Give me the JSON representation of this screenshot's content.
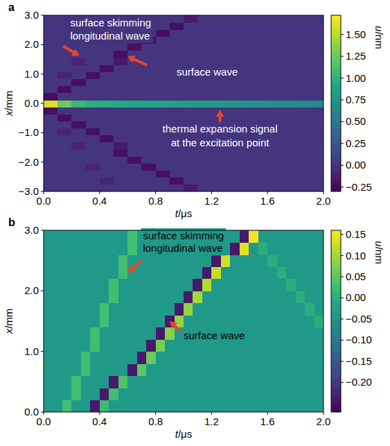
{
  "chart_data": [
    {
      "type": "heatmap",
      "panel": "a",
      "xlabel": "t/μs",
      "ylabel": "x/mm",
      "xlim": [
        0,
        2
      ],
      "ylim": [
        -3,
        3
      ],
      "xticks": [
        {
          "value": 0,
          "label": "0.0"
        },
        {
          "value": 0.4,
          "label": "0.4"
        },
        {
          "value": 0.8,
          "label": "0.8"
        },
        {
          "value": 1.2,
          "label": "1.2"
        },
        {
          "value": 1.6,
          "label": "1.6"
        },
        {
          "value": 2,
          "label": "2.0"
        }
      ],
      "yticks": [
        {
          "value": -3,
          "label": "−3.0"
        },
        {
          "value": -2,
          "label": "−2.0"
        },
        {
          "value": -1,
          "label": "−1.0"
        },
        {
          "value": 0,
          "label": "0.0"
        },
        {
          "value": 1,
          "label": "1.0"
        },
        {
          "value": 2,
          "label": "2.0"
        },
        {
          "value": 3,
          "label": "3.0"
        }
      ],
      "colorbar": {
        "label": "u/nm",
        "range": [
          -0.3,
          1.72
        ],
        "ticks": [
          {
            "value": -0.25,
            "label": "−0.25"
          },
          {
            "value": 0,
            "label": "0.00"
          },
          {
            "value": 0.25,
            "label": "0.25"
          },
          {
            "value": 0.5,
            "label": "0.50"
          },
          {
            "value": 0.75,
            "label": "0.75"
          },
          {
            "value": 1,
            "label": "1.00"
          },
          {
            "value": 1.25,
            "label": "1.25"
          },
          {
            "value": 1.5,
            "label": "1.50"
          }
        ]
      },
      "annotations": [
        {
          "lines": [
            "surface skimming",
            "longitudinal wave"
          ]
        },
        {
          "lines": [
            "surface wave"
          ]
        },
        {
          "lines": [
            "thermal expansion signal",
            "at the excitation point"
          ]
        }
      ],
      "cells": [
        [
          0,
          0,
          0,
          0,
          0,
          0,
          0,
          0,
          0,
          0,
          -0.15,
          0,
          0,
          0,
          0,
          0,
          0,
          0,
          0,
          0
        ],
        [
          0,
          0,
          0,
          0,
          -0.1,
          0,
          0,
          0,
          0,
          -0.22,
          0,
          0,
          0,
          0,
          0,
          0,
          0,
          0,
          0,
          0
        ],
        [
          0,
          0,
          0,
          0,
          0,
          0,
          0,
          0,
          -0.22,
          0,
          0,
          0,
          0,
          0,
          0,
          0,
          0,
          0,
          0,
          0
        ],
        [
          0,
          0,
          0,
          -0.1,
          0,
          0,
          0,
          -0.22,
          0,
          0,
          0,
          0,
          0,
          0,
          0,
          0,
          0,
          0,
          0,
          0
        ],
        [
          0,
          0,
          0,
          0,
          0,
          0,
          -0.22,
          0,
          0,
          0,
          0,
          0,
          0,
          0,
          0,
          0,
          0,
          0,
          0,
          0
        ],
        [
          0,
          0,
          0,
          0,
          0,
          -0.22,
          0,
          0,
          0,
          0,
          0,
          0,
          0,
          0,
          0,
          0,
          0,
          0,
          0,
          0
        ],
        [
          0,
          0,
          -0.1,
          0,
          0,
          -0.15,
          0,
          0,
          0,
          0,
          0,
          0,
          0,
          0,
          0,
          0,
          0,
          0,
          0,
          0
        ],
        [
          0,
          0,
          0,
          0,
          -0.22,
          0,
          0,
          0,
          0,
          0,
          0,
          0,
          0,
          0,
          0,
          0,
          0,
          0,
          0,
          0
        ],
        [
          0,
          -0.1,
          0,
          -0.22,
          0,
          0,
          0,
          0,
          0,
          0,
          0,
          0,
          0,
          0,
          0,
          0,
          0,
          0,
          0,
          0
        ],
        [
          0,
          0,
          -0.22,
          0,
          0,
          0,
          0,
          0,
          0,
          0,
          0,
          0,
          0,
          0,
          0,
          0,
          0,
          0,
          0,
          0
        ],
        [
          0,
          -0.22,
          0,
          0,
          0,
          0,
          0,
          0,
          0,
          0,
          0,
          0,
          0,
          0,
          0,
          0,
          0,
          0,
          0,
          0
        ],
        [
          -0.22,
          0,
          0,
          0,
          0,
          0,
          0,
          0,
          0,
          0,
          0,
          0,
          0,
          0,
          0,
          0,
          0,
          0,
          0,
          0
        ],
        [
          1.6,
          1.25,
          1.05,
          0.98,
          0.95,
          0.92,
          0.9,
          0.88,
          0.86,
          0.84,
          0.82,
          0.8,
          0.78,
          0.76,
          0.74,
          0.72,
          0.7,
          0.68,
          0.66,
          0.64
        ],
        [
          -0.22,
          0,
          0,
          0,
          0,
          0,
          0,
          0,
          0,
          0,
          0,
          0,
          0,
          0,
          0,
          0,
          0,
          0,
          0,
          0
        ],
        [
          0,
          -0.22,
          0,
          0,
          0,
          0,
          0,
          0,
          0,
          0,
          0,
          0,
          0,
          0,
          0,
          0,
          0,
          0,
          0,
          0
        ],
        [
          0,
          0,
          -0.22,
          0,
          0,
          0,
          0,
          0,
          0,
          0,
          0,
          0,
          0,
          0,
          0,
          0,
          0,
          0,
          0,
          0
        ],
        [
          0,
          -0.1,
          0,
          -0.22,
          0,
          0,
          0,
          0,
          0,
          0,
          0,
          0,
          0,
          0,
          0,
          0,
          0,
          0,
          0,
          0
        ],
        [
          0,
          0,
          0,
          0,
          -0.22,
          0,
          0,
          0,
          0,
          0,
          0,
          0,
          0,
          0,
          0,
          0,
          0,
          0,
          0,
          0
        ],
        [
          0,
          0,
          -0.1,
          0,
          0,
          -0.15,
          0,
          0,
          0,
          0,
          0,
          0,
          0,
          0,
          0,
          0,
          0,
          0,
          0,
          0
        ],
        [
          0,
          0,
          0,
          0,
          0,
          -0.22,
          0,
          0,
          0,
          0,
          0,
          0,
          0,
          0,
          0,
          0,
          0,
          0,
          0,
          0
        ],
        [
          0,
          0,
          0,
          0,
          0,
          0,
          -0.22,
          0,
          0,
          0,
          0,
          0,
          0,
          0,
          0,
          0,
          0,
          0,
          0,
          0
        ],
        [
          0,
          0,
          0,
          -0.1,
          0,
          0,
          0,
          -0.22,
          0,
          0,
          0,
          0,
          0,
          0,
          0,
          0,
          0,
          0,
          0,
          0
        ],
        [
          0,
          0,
          0,
          0,
          0,
          0,
          0,
          0,
          -0.22,
          0,
          0,
          0,
          0,
          0,
          0,
          0,
          0,
          0,
          0,
          0
        ],
        [
          0,
          0,
          0,
          0,
          -0.1,
          0,
          0,
          0,
          0,
          -0.22,
          0,
          0,
          0,
          0,
          0,
          0,
          0,
          0,
          0,
          0
        ],
        [
          0,
          0,
          0,
          0,
          0,
          0,
          0,
          0,
          0,
          0,
          -0.15,
          0,
          0,
          0,
          0,
          0,
          0,
          0,
          0,
          0
        ]
      ]
    },
    {
      "type": "heatmap",
      "panel": "b",
      "xlabel": "t/μs",
      "ylabel": "x/mm",
      "xlim": [
        0,
        2
      ],
      "ylim": [
        0,
        3
      ],
      "xticks": [
        {
          "value": 0,
          "label": "0.0"
        },
        {
          "value": 0.4,
          "label": "0.4"
        },
        {
          "value": 0.8,
          "label": "0.8"
        },
        {
          "value": 1.2,
          "label": "1.2"
        },
        {
          "value": 1.6,
          "label": "1.6"
        },
        {
          "value": 2,
          "label": "2.0"
        }
      ],
      "yticks": [
        {
          "value": 0,
          "label": "0.0"
        },
        {
          "value": 1,
          "label": "1.0"
        },
        {
          "value": 2,
          "label": "2.0"
        },
        {
          "value": 3,
          "label": "3.0"
        }
      ],
      "colorbar": {
        "label": "u/nm",
        "range": [
          -0.27,
          0.16
        ],
        "ticks": [
          {
            "value": -0.2,
            "label": "−0.20"
          },
          {
            "value": -0.15,
            "label": "−0.15"
          },
          {
            "value": -0.1,
            "label": "−0.10"
          },
          {
            "value": -0.05,
            "label": "−0.05"
          },
          {
            "value": 0,
            "label": "0.00"
          },
          {
            "value": 0.05,
            "label": "0.05"
          },
          {
            "value": 0.1,
            "label": "0.10"
          },
          {
            "value": 0.15,
            "label": "0.15"
          }
        ]
      },
      "annotations": [
        {
          "lines": [
            "surface skimming",
            "longitudinal wave"
          ]
        },
        {
          "lines": [
            "surface wave"
          ]
        }
      ],
      "cells": [
        [
          -0.04,
          -0.04,
          0.03,
          -0.04,
          -0.04,
          -0.24,
          0.02,
          -0.04,
          -0.04,
          -0.04,
          -0.04,
          -0.04,
          -0.04,
          -0.04,
          -0.04,
          -0.04,
          -0.04,
          -0.04,
          -0.04,
          -0.04,
          -0.04,
          -0.04,
          -0.04,
          -0.04,
          -0.04,
          -0.04,
          -0.04,
          -0.04,
          -0.04,
          -0.04
        ],
        [
          -0.04,
          -0.04,
          -0.04,
          0.03,
          -0.04,
          -0.04,
          -0.24,
          0.03,
          -0.04,
          -0.04,
          -0.04,
          -0.04,
          -0.04,
          -0.04,
          -0.04,
          -0.04,
          -0.04,
          -0.04,
          -0.04,
          -0.04,
          -0.04,
          -0.04,
          -0.04,
          -0.04,
          -0.04,
          -0.04,
          -0.04,
          -0.04,
          -0.04,
          -0.04
        ],
        [
          -0.04,
          -0.04,
          -0.04,
          0.03,
          -0.04,
          -0.04,
          -0.04,
          -0.24,
          0.04,
          -0.04,
          -0.04,
          -0.04,
          -0.04,
          -0.04,
          -0.04,
          -0.04,
          -0.04,
          -0.04,
          -0.04,
          -0.04,
          -0.04,
          -0.04,
          -0.04,
          -0.04,
          -0.04,
          -0.04,
          -0.04,
          -0.04,
          -0.04,
          -0.04
        ],
        [
          -0.04,
          -0.04,
          -0.04,
          -0.04,
          0.03,
          -0.04,
          -0.04,
          -0.04,
          -0.04,
          -0.24,
          0.05,
          -0.04,
          -0.04,
          -0.04,
          -0.04,
          -0.04,
          -0.04,
          -0.04,
          -0.04,
          -0.04,
          -0.04,
          -0.04,
          -0.04,
          -0.04,
          -0.04,
          -0.04,
          -0.04,
          -0.04,
          -0.04,
          -0.04
        ],
        [
          -0.04,
          -0.04,
          -0.04,
          -0.04,
          0.03,
          -0.04,
          -0.04,
          -0.04,
          -0.04,
          -0.04,
          -0.24,
          0.06,
          -0.04,
          -0.04,
          -0.04,
          -0.04,
          -0.04,
          -0.04,
          -0.04,
          -0.04,
          -0.04,
          -0.04,
          -0.04,
          -0.04,
          -0.04,
          -0.04,
          -0.04,
          -0.04,
          -0.04,
          -0.04
        ],
        [
          -0.04,
          -0.04,
          -0.04,
          -0.04,
          -0.04,
          0.03,
          -0.04,
          -0.04,
          -0.04,
          -0.04,
          -0.04,
          -0.24,
          0.07,
          -0.04,
          -0.04,
          -0.04,
          -0.04,
          -0.04,
          -0.04,
          -0.04,
          -0.04,
          -0.04,
          -0.04,
          -0.04,
          -0.04,
          -0.04,
          -0.04,
          -0.04,
          -0.04,
          -0.04
        ],
        [
          -0.04,
          -0.04,
          -0.04,
          -0.04,
          -0.04,
          0.03,
          -0.04,
          -0.04,
          -0.04,
          -0.04,
          -0.04,
          -0.04,
          -0.24,
          0.08,
          -0.04,
          -0.04,
          -0.04,
          -0.04,
          -0.04,
          -0.04,
          -0.04,
          -0.04,
          -0.04,
          -0.04,
          -0.04,
          -0.04,
          -0.04,
          -0.04,
          -0.04,
          -0.04
        ],
        [
          -0.04,
          -0.04,
          -0.04,
          -0.04,
          -0.04,
          -0.04,
          0.03,
          -0.04,
          -0.04,
          -0.04,
          -0.04,
          -0.04,
          -0.04,
          -0.24,
          0.09,
          -0.04,
          -0.04,
          -0.04,
          -0.04,
          -0.04,
          -0.04,
          -0.04,
          -0.04,
          -0.04,
          -0.04,
          -0.04,
          -0.04,
          -0.04,
          -0.04,
          0
        ],
        [
          -0.04,
          -0.04,
          -0.04,
          -0.04,
          -0.04,
          -0.04,
          0.03,
          -0.04,
          -0.04,
          -0.04,
          -0.04,
          -0.04,
          -0.04,
          -0.04,
          -0.24,
          0.09,
          -0.04,
          -0.04,
          -0.04,
          -0.04,
          -0.04,
          -0.04,
          -0.04,
          -0.04,
          -0.04,
          -0.04,
          -0.04,
          -0.04,
          0,
          -0.04
        ],
        [
          -0.04,
          -0.04,
          -0.04,
          -0.04,
          -0.04,
          -0.04,
          -0.04,
          0.03,
          -0.04,
          -0.04,
          -0.04,
          -0.04,
          -0.04,
          -0.04,
          -0.04,
          -0.24,
          0.1,
          -0.04,
          -0.04,
          -0.04,
          -0.04,
          -0.04,
          -0.04,
          -0.04,
          -0.04,
          -0.04,
          -0.04,
          0,
          -0.04,
          -0.04
        ],
        [
          -0.04,
          -0.04,
          -0.04,
          -0.04,
          -0.04,
          -0.04,
          -0.04,
          0.03,
          -0.04,
          -0.04,
          -0.04,
          -0.04,
          -0.04,
          -0.04,
          -0.04,
          -0.04,
          -0.24,
          0.11,
          -0.04,
          -0.04,
          -0.04,
          -0.04,
          -0.04,
          -0.04,
          -0.04,
          -0.04,
          0,
          -0.04,
          -0.04,
          -0.04
        ],
        [
          -0.04,
          -0.04,
          -0.04,
          -0.04,
          -0.04,
          -0.04,
          -0.04,
          -0.04,
          0.03,
          -0.04,
          -0.04,
          -0.04,
          -0.04,
          -0.04,
          -0.04,
          -0.04,
          -0.04,
          -0.24,
          0.12,
          -0.04,
          -0.04,
          -0.04,
          -0.04,
          -0.04,
          -0.04,
          0,
          -0.04,
          -0.04,
          -0.04,
          -0.04
        ],
        [
          -0.04,
          -0.04,
          -0.04,
          -0.04,
          -0.04,
          -0.04,
          -0.04,
          -0.04,
          0.03,
          -0.04,
          -0.04,
          -0.04,
          -0.04,
          -0.04,
          -0.04,
          -0.04,
          -0.04,
          -0.04,
          -0.24,
          0.13,
          -0.04,
          -0.04,
          -0.04,
          -0.04,
          0,
          -0.04,
          -0.04,
          -0.04,
          -0.04,
          -0.04
        ],
        [
          -0.04,
          -0.04,
          -0.04,
          -0.04,
          -0.04,
          -0.04,
          -0.04,
          -0.04,
          -0.04,
          0.03,
          -0.04,
          -0.04,
          -0.04,
          -0.04,
          -0.04,
          -0.04,
          -0.04,
          -0.04,
          -0.04,
          -0.04,
          -0.24,
          0.14,
          -0.04,
          0,
          -0.04,
          -0.04,
          -0.04,
          -0.04,
          -0.04,
          -0.04
        ],
        [
          -0.04,
          -0.04,
          -0.04,
          -0.04,
          -0.04,
          -0.04,
          -0.04,
          -0.04,
          -0.04,
          0.03,
          -0.04,
          -0.04,
          -0.04,
          -0.04,
          -0.04,
          -0.04,
          -0.04,
          -0.04,
          -0.04,
          -0.04,
          -0.04,
          -0.24,
          0.15,
          -0.04,
          -0.04,
          -0.04,
          -0.04,
          -0.04,
          -0.04,
          -0.04
        ]
      ]
    }
  ]
}
